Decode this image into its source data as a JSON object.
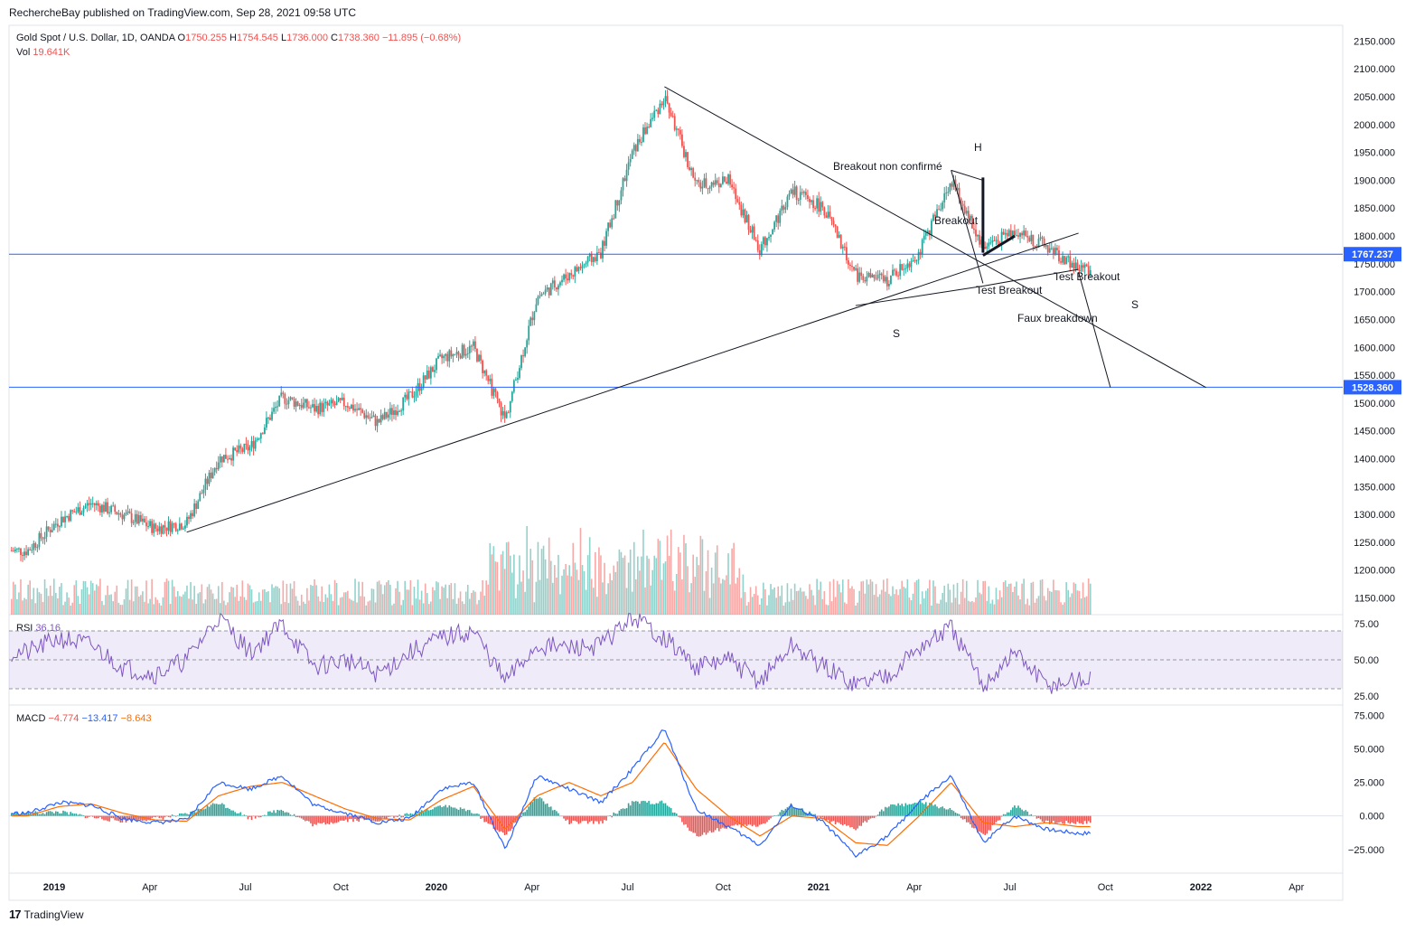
{
  "header": {
    "published": "RechercheBay published on TradingView.com, Sep 28, 2021 09:58 UTC"
  },
  "legend": {
    "symbol": "Gold Spot / U.S. Dollar, 1D, OANDA",
    "o_label": "O",
    "o_value": "1750.255",
    "h_label": "H",
    "h_value": "1754.545",
    "l_label": "L",
    "l_value": "1736.000",
    "c_label": "C",
    "c_value": "1738.360",
    "change": "−11.895 (−0.68%)",
    "vol_label": "Vol",
    "vol_value": "19.641K",
    "rsi_label": "RSI",
    "rsi_value": "36.16",
    "macd_label": "MACD",
    "macd_value": "−4.774",
    "signal_value": "−13.417",
    "hist_value": "−8.643"
  },
  "footer": {
    "brand": "TradingView",
    "logo": "17"
  },
  "chart_data": {
    "type": "candlestick",
    "symbol": "XAUUSD",
    "price_axis": {
      "range": [
        1120,
        2175
      ],
      "ticks": [
        "2150.000",
        "2100.000",
        "2050.000",
        "2000.000",
        "1950.000",
        "1900.000",
        "1850.000",
        "1800.000",
        "1750.000",
        "1700.000",
        "1650.000",
        "1600.000",
        "1550.000",
        "1500.000",
        "1450.000",
        "1400.000",
        "1350.000",
        "1300.000",
        "1250.000",
        "1200.000",
        "1150.000"
      ]
    },
    "time_axis": {
      "ticks": [
        "2019",
        "Apr",
        "Jul",
        "Oct",
        "2020",
        "Apr",
        "Jul",
        "Oct",
        "2021",
        "Apr",
        "Jul",
        "Oct",
        "2022",
        "Apr"
      ]
    },
    "price_series": [
      [
        "2018-12",
        1235
      ],
      [
        "2019-01",
        1290
      ],
      [
        "2019-02",
        1320
      ],
      [
        "2019-03",
        1300
      ],
      [
        "2019-04",
        1275
      ],
      [
        "2019-05",
        1285
      ],
      [
        "2019-06",
        1400
      ],
      [
        "2019-07",
        1420
      ],
      [
        "2019-08",
        1510
      ],
      [
        "2019-09",
        1490
      ],
      [
        "2019-10",
        1500
      ],
      [
        "2019-11",
        1465
      ],
      [
        "2019-12",
        1510
      ],
      [
        "2020-01",
        1580
      ],
      [
        "2020-02",
        1600
      ],
      [
        "2020-03",
        1470
      ],
      [
        "2020-04",
        1690
      ],
      [
        "2020-05",
        1730
      ],
      [
        "2020-06",
        1770
      ],
      [
        "2020-07",
        1950
      ],
      [
        "2020-08",
        2050
      ],
      [
        "2020-09",
        1890
      ],
      [
        "2020-10",
        1900
      ],
      [
        "2020-11",
        1775
      ],
      [
        "2020-12",
        1880
      ],
      [
        "2021-01",
        1850
      ],
      [
        "2021-02",
        1730
      ],
      [
        "2021-03",
        1720
      ],
      [
        "2021-04",
        1770
      ],
      [
        "2021-05",
        1900
      ],
      [
        "2021-06",
        1780
      ],
      [
        "2021-07",
        1810
      ],
      [
        "2021-08",
        1780
      ],
      [
        "2021-09",
        1740
      ]
    ],
    "horizontal_levels": [
      {
        "price": 1767.237,
        "label": "1767.237"
      },
      {
        "price": 1528.36,
        "label": "1528.360"
      }
    ],
    "annotations": [
      {
        "text": "Breakout non confirmé"
      },
      {
        "text": "Breakout"
      },
      {
        "text": "H"
      },
      {
        "text": "S"
      },
      {
        "text": "Test Breakout"
      },
      {
        "text": "Test Breakout"
      },
      {
        "text": "Faux breakdown"
      },
      {
        "text": "S"
      }
    ],
    "rsi": {
      "ticks": [
        "75.00",
        "50.00",
        "25.00"
      ],
      "band": [
        30,
        70
      ],
      "series": [
        [
          "2018-12",
          55
        ],
        [
          "2019-01",
          65
        ],
        [
          "2019-02",
          60
        ],
        [
          "2019-03",
          45
        ],
        [
          "2019-04",
          40
        ],
        [
          "2019-05",
          50
        ],
        [
          "2019-06",
          80
        ],
        [
          "2019-07",
          55
        ],
        [
          "2019-08",
          75
        ],
        [
          "2019-09",
          45
        ],
        [
          "2019-10",
          50
        ],
        [
          "2019-11",
          40
        ],
        [
          "2019-12",
          55
        ],
        [
          "2020-01",
          65
        ],
        [
          "2020-02",
          70
        ],
        [
          "2020-03",
          35
        ],
        [
          "2020-04",
          60
        ],
        [
          "2020-05",
          58
        ],
        [
          "2020-06",
          60
        ],
        [
          "2020-07",
          80
        ],
        [
          "2020-08",
          65
        ],
        [
          "2020-09",
          45
        ],
        [
          "2020-10",
          50
        ],
        [
          "2020-11",
          35
        ],
        [
          "2020-12",
          60
        ],
        [
          "2021-01",
          45
        ],
        [
          "2021-02",
          33
        ],
        [
          "2021-03",
          40
        ],
        [
          "2021-04",
          58
        ],
        [
          "2021-05",
          72
        ],
        [
          "2021-06",
          32
        ],
        [
          "2021-07",
          55
        ],
        [
          "2021-08",
          32
        ],
        [
          "2021-09",
          36
        ]
      ]
    },
    "macd": {
      "ticks": [
        "75.000",
        "50.000",
        "25.000",
        "0.000",
        "−25.000"
      ],
      "macd_series": [
        [
          "2018-12",
          2
        ],
        [
          "2019-01",
          10
        ],
        [
          "2019-02",
          8
        ],
        [
          "2019-03",
          -2
        ],
        [
          "2019-04",
          -5
        ],
        [
          "2019-05",
          -3
        ],
        [
          "2019-06",
          25
        ],
        [
          "2019-07",
          20
        ],
        [
          "2019-08",
          30
        ],
        [
          "2019-09",
          8
        ],
        [
          "2019-10",
          2
        ],
        [
          "2019-11",
          -5
        ],
        [
          "2019-12",
          -2
        ],
        [
          "2020-01",
          20
        ],
        [
          "2020-02",
          25
        ],
        [
          "2020-03",
          -25
        ],
        [
          "2020-04",
          30
        ],
        [
          "2020-05",
          20
        ],
        [
          "2020-06",
          10
        ],
        [
          "2020-07",
          35
        ],
        [
          "2020-08",
          65
        ],
        [
          "2020-09",
          5
        ],
        [
          "2020-10",
          -8
        ],
        [
          "2020-11",
          -22
        ],
        [
          "2020-12",
          8
        ],
        [
          "2021-01",
          -5
        ],
        [
          "2021-02",
          -30
        ],
        [
          "2021-03",
          -15
        ],
        [
          "2021-04",
          10
        ],
        [
          "2021-05",
          30
        ],
        [
          "2021-06",
          -20
        ],
        [
          "2021-07",
          0
        ],
        [
          "2021-08",
          -10
        ],
        [
          "2021-09",
          -13
        ]
      ],
      "signal_series": [
        [
          "2018-12",
          0
        ],
        [
          "2019-01",
          7
        ],
        [
          "2019-02",
          9
        ],
        [
          "2019-03",
          2
        ],
        [
          "2019-04",
          -3
        ],
        [
          "2019-05",
          -4
        ],
        [
          "2019-06",
          15
        ],
        [
          "2019-07",
          22
        ],
        [
          "2019-08",
          25
        ],
        [
          "2019-09",
          15
        ],
        [
          "2019-10",
          5
        ],
        [
          "2019-11",
          -2
        ],
        [
          "2019-12",
          -3
        ],
        [
          "2020-01",
          12
        ],
        [
          "2020-02",
          22
        ],
        [
          "2020-03",
          -10
        ],
        [
          "2020-04",
          15
        ],
        [
          "2020-05",
          25
        ],
        [
          "2020-06",
          15
        ],
        [
          "2020-07",
          25
        ],
        [
          "2020-08",
          55
        ],
        [
          "2020-09",
          20
        ],
        [
          "2020-10",
          0
        ],
        [
          "2020-11",
          -15
        ],
        [
          "2020-12",
          0
        ],
        [
          "2021-01",
          -2
        ],
        [
          "2021-02",
          -20
        ],
        [
          "2021-03",
          -22
        ],
        [
          "2021-04",
          0
        ],
        [
          "2021-05",
          25
        ],
        [
          "2021-06",
          -5
        ],
        [
          "2021-07",
          -8
        ],
        [
          "2021-08",
          -5
        ],
        [
          "2021-09",
          -8
        ]
      ]
    }
  }
}
